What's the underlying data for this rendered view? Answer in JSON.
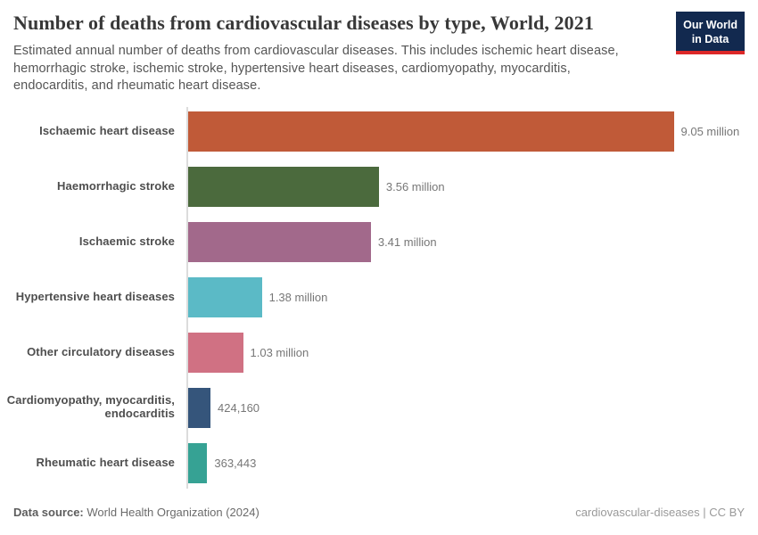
{
  "header": {
    "title": "Number of deaths from cardiovascular diseases by type, World, 2021",
    "subtitle": "Estimated annual number of deaths from cardiovascular diseases. This includes ischemic heart disease, hemorrhagic stroke, ischemic stroke, hypertensive heart diseases, cardiomyopathy, myocarditis, endocarditis, and rheumatic heart disease.",
    "logo": {
      "line1": "Our World",
      "line2": "in Data",
      "bg_color": "#12294f",
      "stripe_color": "#dc2828"
    }
  },
  "chart_data": {
    "type": "bar",
    "orientation": "horizontal",
    "title": "Number of deaths from cardiovascular diseases by type, World, 2021",
    "categories": [
      "Ischaemic heart disease",
      "Haemorrhagic stroke",
      "Ischaemic stroke",
      "Hypertensive heart diseases",
      "Other circulatory diseases",
      "Cardiomyopathy, myocarditis, endocarditis",
      "Rheumatic heart disease"
    ],
    "values": [
      9050000,
      3560000,
      3410000,
      1380000,
      1030000,
      424160,
      363443
    ],
    "value_labels": [
      "9.05 million",
      "3.56 million",
      "3.41 million",
      "1.38 million",
      "1.03 million",
      "424,160",
      "363,443"
    ],
    "colors": [
      "#c05a38",
      "#4b6a3d",
      "#a2698b",
      "#5bbac6",
      "#d07183",
      "#35557b",
      "#36a294"
    ],
    "xlim": [
      0,
      9050000
    ],
    "grid": false,
    "legend": false
  },
  "footer": {
    "datasource_label": "Data source:",
    "datasource_value": "World Health Organization (2024)",
    "license_text": "cardiovascular-diseases | CC BY"
  }
}
